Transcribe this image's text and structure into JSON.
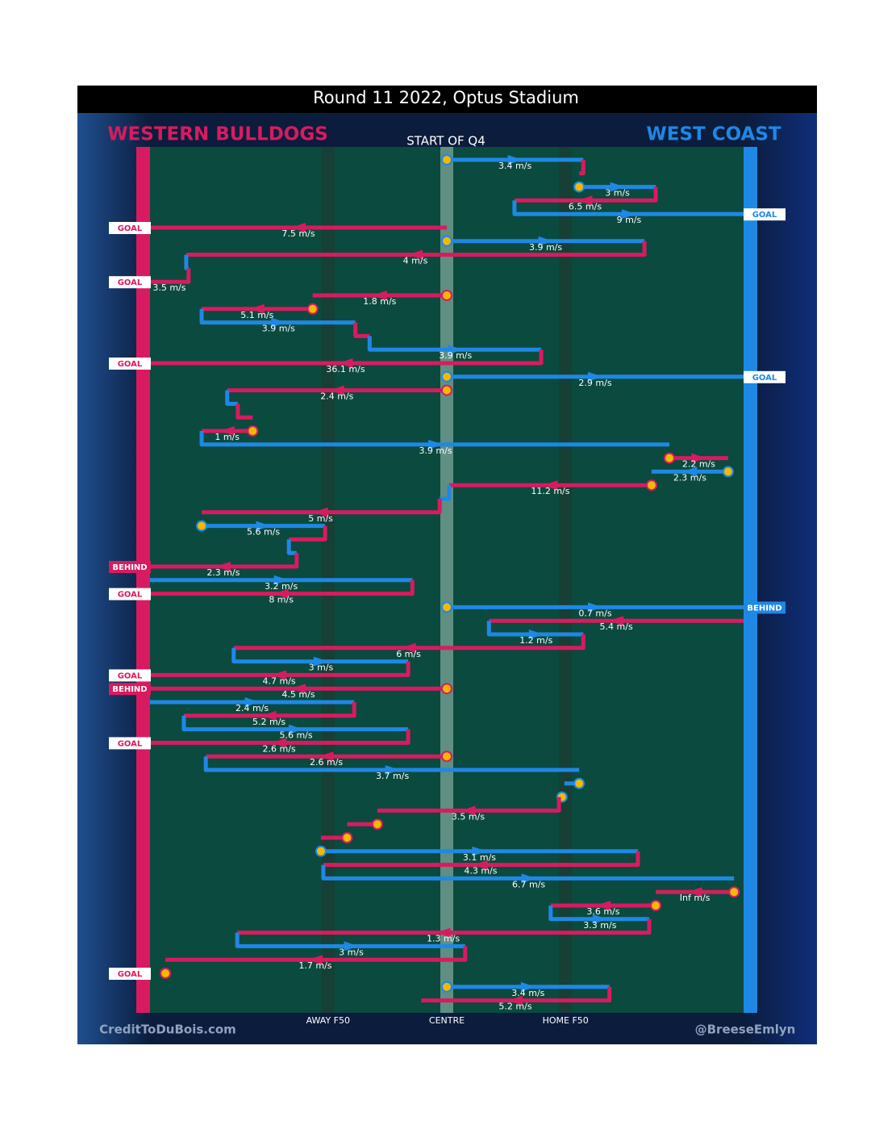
{
  "chart_data": {
    "type": "possession-chain",
    "title": "Round 11 2022, Optus Stadium",
    "subtitle": "START OF Q4",
    "left_team": {
      "name": "WESTERN BULLDOGS",
      "color": "#d81b60"
    },
    "right_team": {
      "name": "WEST COAST",
      "color": "#1e88e5"
    },
    "credit_left": "CreditToDuBois.com",
    "credit_right": "@BreeseEmlyn",
    "xlim": [
      0,
      100
    ],
    "xticks": [
      {
        "value": 30,
        "label": "AWAY F50"
      },
      {
        "value": 50,
        "label": "CENTRE"
      },
      {
        "value": 70,
        "label": "HOME F50"
      }
    ],
    "segments": [
      {
        "color": "#1e88e5",
        "x0": 50,
        "x1": 73.0,
        "label": "3.4 m/s",
        "stoppage": true
      },
      {
        "color": "#d81b60",
        "x0": 73.0,
        "x1": 72.3
      },
      {
        "color": "#1e88e5",
        "x0": 72.3,
        "x1": 85.2,
        "label": "3 m/s",
        "stoppage": true
      },
      {
        "color": "#d81b60",
        "x0": 85.2,
        "x1": 61.4,
        "label": "6.5 m/s"
      },
      {
        "color": "#1e88e5",
        "x0": 61.4,
        "x1": 100,
        "label": "9 m/s",
        "result": "GOAL"
      },
      {
        "color": "#d81b60",
        "x0": 50,
        "x1": 0,
        "label": "7.5 m/s",
        "result": "GOAL"
      },
      {
        "color": "#1e88e5",
        "x0": 50,
        "x1": 83.3,
        "label": "3.9 m/s",
        "stoppage": true
      },
      {
        "color": "#d81b60",
        "x0": 83.3,
        "x1": 6.1,
        "label": "4 m/s"
      },
      {
        "color": "#1e88e5",
        "x0": 6.1,
        "x1": 6.5
      },
      {
        "color": "#d81b60",
        "x0": 6.5,
        "x1": 0,
        "label": "3.5 m/s",
        "result": "GOAL"
      },
      {
        "color": "#d81b60",
        "x0": 50,
        "x1": 27.4,
        "label": "1.8 m/s",
        "stoppage": true
      },
      {
        "color": "#d81b60",
        "x0": 27.4,
        "x1": 8.7,
        "label": "5.1 m/s",
        "stoppage": true
      },
      {
        "color": "#1e88e5",
        "x0": 8.7,
        "x1": 34.6,
        "label": "3.9 m/s"
      },
      {
        "color": "#d81b60",
        "x0": 34.6,
        "x1": 37.0
      },
      {
        "color": "#1e88e5",
        "x0": 37.0,
        "x1": 65.9,
        "label": "3.9 m/s"
      },
      {
        "color": "#d81b60",
        "x0": 65.9,
        "x1": 0,
        "label": "36.1 m/s",
        "result": "GOAL"
      },
      {
        "color": "#1e88e5",
        "x0": 50,
        "x1": 100,
        "label": "2.9 m/s",
        "result": "GOAL",
        "stoppage": true
      },
      {
        "color": "#d81b60",
        "x0": 50,
        "x1": 13.0,
        "label": "2.4 m/s",
        "stoppage": true
      },
      {
        "color": "#1e88e5",
        "x0": 13.0,
        "x1": 14.8
      },
      {
        "color": "#d81b60",
        "x0": 14.8,
        "x1": 17.3
      },
      {
        "color": "#d81b60",
        "x0": 17.3,
        "x1": 8.7,
        "label": "1 m/s",
        "stoppage": true
      },
      {
        "color": "#1e88e5",
        "x0": 8.7,
        "x1": 87.5,
        "label": "3.9 m/s"
      },
      {
        "color": "#d81b60",
        "x0": 87.5,
        "x1": 97.4,
        "label": "2.2 m/s",
        "stoppage": true
      },
      {
        "color": "#1e88e5",
        "x0": 97.4,
        "x1": 84.5,
        "label": "2.3 m/s",
        "stoppage": true
      },
      {
        "color": "#d81b60",
        "x0": 84.5,
        "x1": 50.4,
        "label": "11.2 m/s",
        "stoppage": true
      },
      {
        "color": "#1e88e5",
        "x0": 50.4,
        "x1": 48.8
      },
      {
        "color": "#d81b60",
        "x0": 48.8,
        "x1": 8.7,
        "label": "5 m/s"
      },
      {
        "color": "#1e88e5",
        "x0": 8.7,
        "x1": 29.5,
        "label": "5.6 m/s",
        "stoppage": true
      },
      {
        "color": "#d81b60",
        "x0": 29.5,
        "x1": 23.4
      },
      {
        "color": "#1e88e5",
        "x0": 23.4,
        "x1": 24.7
      },
      {
        "color": "#d81b60",
        "x0": 24.7,
        "x1": 0,
        "label": "2.3 m/s",
        "result": "BEHIND"
      },
      {
        "color": "#1e88e5",
        "x0": 0,
        "x1": 44.2,
        "label": "3.2 m/s"
      },
      {
        "color": "#d81b60",
        "x0": 44.2,
        "x1": 0,
        "label": "8 m/s",
        "result": "GOAL"
      },
      {
        "color": "#1e88e5",
        "x0": 50,
        "x1": 100,
        "label": "0.7 m/s",
        "result": "BEHIND",
        "stoppage": true
      },
      {
        "color": "#d81b60",
        "x0": 100,
        "x1": 57.1,
        "label": "5.4 m/s"
      },
      {
        "color": "#1e88e5",
        "x0": 57.1,
        "x1": 73.0,
        "label": "1.2 m/s"
      },
      {
        "color": "#d81b60",
        "x0": 73.0,
        "x1": 14.1,
        "label": "6 m/s"
      },
      {
        "color": "#1e88e5",
        "x0": 14.1,
        "x1": 43.5,
        "label": "3 m/s"
      },
      {
        "color": "#d81b60",
        "x0": 43.5,
        "x1": 0,
        "label": "4.7 m/s",
        "result": "GOAL"
      },
      {
        "color": "#d81b60",
        "x0": 50,
        "x1": 0,
        "label": "4.5 m/s",
        "result": "BEHIND",
        "stoppage": true
      },
      {
        "color": "#1e88e5",
        "x0": 0,
        "x1": 34.4,
        "label": "2.4 m/s"
      },
      {
        "color": "#d81b60",
        "x0": 34.4,
        "x1": 5.7,
        "label": "5.2 m/s"
      },
      {
        "color": "#1e88e5",
        "x0": 5.7,
        "x1": 43.5,
        "label": "5.6 m/s"
      },
      {
        "color": "#d81b60",
        "x0": 43.5,
        "x1": 0,
        "label": "2.6 m/s",
        "result": "GOAL"
      },
      {
        "color": "#d81b60",
        "x0": 50,
        "x1": 9.4,
        "label": "2.6 m/s",
        "stoppage": true
      },
      {
        "color": "#1e88e5",
        "x0": 9.4,
        "x1": 72.3,
        "label": "3.7 m/s"
      },
      {
        "color": "#1e88e5",
        "x0": 72.3,
        "x1": 69.8,
        "stoppage": true
      },
      {
        "color": "#1e88e5",
        "x0": 69.4,
        "x1": 68.9,
        "stoppage": true
      },
      {
        "color": "#d81b60",
        "x0": 68.9,
        "x1": 38.3,
        "label": "3.5 m/s"
      },
      {
        "color": "#d81b60",
        "x0": 38.3,
        "x1": 33.2,
        "stoppage": true
      },
      {
        "color": "#d81b60",
        "x0": 33.2,
        "x1": 28.8,
        "stoppage": true
      },
      {
        "color": "#1e88e5",
        "x0": 28.8,
        "x1": 82.2,
        "label": "3.1 m/s",
        "stoppage": true
      },
      {
        "color": "#d81b60",
        "x0": 82.2,
        "x1": 29.2,
        "label": "4.3 m/s"
      },
      {
        "color": "#1e88e5",
        "x0": 29.2,
        "x1": 98.4,
        "label": "6.7 m/s"
      },
      {
        "color": "#d81b60",
        "x0": 98.4,
        "x1": 85.2,
        "label": "Inf m/s",
        "stoppage": true
      },
      {
        "color": "#d81b60",
        "x0": 85.2,
        "x1": 67.5,
        "label": "3.6 m/s",
        "stoppage": true
      },
      {
        "color": "#1e88e5",
        "x0": 67.5,
        "x1": 84.1,
        "label": "3.3 m/s"
      },
      {
        "color": "#d81b60",
        "x0": 84.1,
        "x1": 14.7,
        "label": "1.3 m/s"
      },
      {
        "color": "#1e88e5",
        "x0": 14.7,
        "x1": 53.1,
        "label": "3 m/s"
      },
      {
        "color": "#d81b60",
        "x0": 53.1,
        "x1": 2.6,
        "label": "1.7 m/s"
      },
      {
        "color": "#d81b60",
        "x0": 2.6,
        "x1": 2.6,
        "result": "GOAL",
        "stoppage": true
      },
      {
        "color": "#1e88e5",
        "x0": 50,
        "x1": 77.4,
        "label": "3.4 m/s",
        "stoppage": true
      },
      {
        "color": "#d81b60",
        "x0": 77.4,
        "x1": 45.7,
        "label": "5.2 m/s"
      }
    ]
  }
}
